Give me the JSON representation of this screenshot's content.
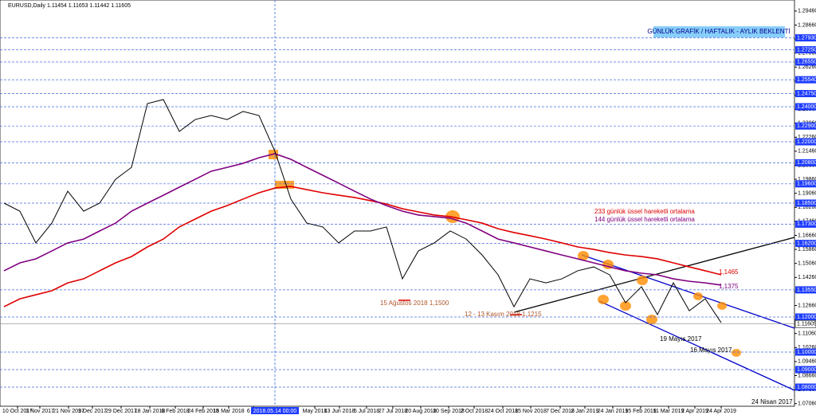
{
  "header": "EURUSD,Daily  1.11454 1.11653 1.11442 1.11605",
  "chart_data": {
    "type": "line",
    "series": [
      {
        "color": "#000000",
        "values": [
          1.185,
          1.1804,
          1.1623,
          1.1736,
          1.1918,
          1.1804,
          1.185,
          1.1986,
          1.2054,
          1.2418,
          1.2441,
          1.2259,
          1.2327,
          1.235,
          1.2327,
          1.2373,
          1.235,
          1.2145,
          1.1873,
          1.1736,
          1.1714,
          1.1623,
          1.1691,
          1.1691,
          1.1714,
          1.1418,
          1.1577,
          1.1623,
          1.1691,
          1.1645,
          1.1554,
          1.1441,
          1.1259,
          1.1418,
          1.1395,
          1.1418,
          1.1464,
          1.1486,
          1.1441,
          1.1282,
          1.1373,
          1.1214,
          1.1395,
          1.1236,
          1.1304,
          1.1168
        ]
      },
      {
        "color": "#800080",
        "values": [
          1.1464,
          1.1509,
          1.1532,
          1.1577,
          1.1623,
          1.1645,
          1.1691,
          1.1736,
          1.1804,
          1.185,
          1.1895,
          1.1941,
          1.1986,
          1.2032,
          1.2054,
          1.2077,
          1.2109,
          1.2132,
          1.21,
          1.2054,
          1.2009,
          1.1964,
          1.1918,
          1.1873,
          1.1836,
          1.1804,
          1.1782,
          1.1773,
          1.1764,
          1.1736,
          1.1691,
          1.1645,
          1.1623,
          1.16,
          1.1577,
          1.1554,
          1.1532,
          1.1509,
          1.1486,
          1.1464,
          1.145,
          1.1441,
          1.1418,
          1.1404,
          1.1395,
          1.1382
        ]
      },
      {
        "color": "#e00000",
        "values": [
          1.1259,
          1.1304,
          1.1327,
          1.135,
          1.1395,
          1.1418,
          1.1464,
          1.1509,
          1.1545,
          1.16,
          1.1645,
          1.1714,
          1.1759,
          1.1804,
          1.1836,
          1.1873,
          1.1909,
          1.1936,
          1.1945,
          1.1927,
          1.1909,
          1.1895,
          1.1882,
          1.1864,
          1.1845,
          1.1818,
          1.18,
          1.1782,
          1.1773,
          1.1755,
          1.1736,
          1.1704,
          1.1682,
          1.1664,
          1.1645,
          1.1623,
          1.16,
          1.1586,
          1.1568,
          1.1554,
          1.1545,
          1.1532,
          1.1509,
          1.1486,
          1.1464,
          1.1441
        ]
      }
    ],
    "xlim": [
      -0.25,
      49.6
    ],
    "xticks": [
      {
        "value": 0.85,
        "label": "10 Oct 2017"
      },
      {
        "value": 2.25,
        "label": "1 Nov 2017"
      },
      {
        "value": 4.05,
        "label": "21 Nov 2017"
      },
      {
        "value": 5.55,
        "label": "9 Dec 2017"
      },
      {
        "value": 7.35,
        "label": "29 Dec 2017"
      },
      {
        "value": 9.15,
        "label": "18 Jan 2018"
      },
      {
        "value": 10.75,
        "label": "6 Feb 2018"
      },
      {
        "value": 12.5,
        "label": "24 Feb 2018"
      },
      {
        "value": 14.1,
        "label": "15 Mar 2018"
      },
      {
        "value": 15.65,
        "label": "6 Apr"
      },
      {
        "value": 19.5,
        "label": "May 2018"
      },
      {
        "value": 21.05,
        "label": "13 Jun 2018"
      },
      {
        "value": 22.75,
        "label": "5 Jul 2018"
      },
      {
        "value": 24.4,
        "label": "27 Jul 2018"
      },
      {
        "value": 26.15,
        "label": "20 Aug 2018"
      },
      {
        "value": 27.9,
        "label": "10 Sep 2018"
      },
      {
        "value": 29.5,
        "label": "2 Oct 2018"
      },
      {
        "value": 31.3,
        "label": "24 Oct 2018"
      },
      {
        "value": 33.05,
        "label": "15 Nov 2018"
      },
      {
        "value": 34.9,
        "label": "7 Dec 2018"
      },
      {
        "value": 36.45,
        "label": "2 Jan 2019"
      },
      {
        "value": 38.2,
        "label": "24 Jan 2019"
      },
      {
        "value": 39.95,
        "label": "15 Feb 2019"
      },
      {
        "value": 41.7,
        "label": "11 Mar 2019"
      },
      {
        "value": 43.35,
        "label": "2 Apr 2019"
      },
      {
        "value": 45,
        "label": "24 Apr 2019"
      }
    ],
    "crosshair": {
      "value": 17,
      "label": "2018.05.14 00:00"
    },
    "ylim": [
      1.0691,
      1.3009
    ],
    "yticks": [
      {
        "value": 1.2946,
        "label": "1.29460"
      },
      {
        "value": 1.2866,
        "label": "1.28660"
      },
      {
        "value": 1.2786,
        "label": "1.27860"
      },
      {
        "value": 1.2706,
        "label": "1.27060"
      },
      {
        "value": 1.2626,
        "label": "1.26260"
      },
      {
        "value": 1.2546,
        "label": "1.25460"
      },
      {
        "value": 1.2466,
        "label": "1.24660"
      },
      {
        "value": 1.2386,
        "label": "1.23860"
      },
      {
        "value": 1.2306,
        "label": "1.23060"
      },
      {
        "value": 1.2226,
        "label": "1.22260"
      },
      {
        "value": 1.2146,
        "label": "1.21460"
      },
      {
        "value": 1.2066,
        "label": "1.20660"
      },
      {
        "value": 1.1986,
        "label": "1.19860"
      },
      {
        "value": 1.1906,
        "label": "1.19060"
      },
      {
        "value": 1.1826,
        "label": "1.18260"
      },
      {
        "value": 1.1746,
        "label": "1.17460"
      },
      {
        "value": 1.1666,
        "label": "1.16660"
      },
      {
        "value": 1.1586,
        "label": "1.15860"
      },
      {
        "value": 1.1506,
        "label": "1.15060"
      },
      {
        "value": 1.1426,
        "label": "1.14260"
      },
      {
        "value": 1.1346,
        "label": "1.13460"
      },
      {
        "value": 1.1266,
        "label": "1.12660"
      },
      {
        "value": 1.1186,
        "label": "1.11860"
      },
      {
        "value": 1.1106,
        "label": "1.11060"
      },
      {
        "value": 1.1026,
        "label": "1.10260"
      },
      {
        "value": 1.0946,
        "label": "1.09460"
      },
      {
        "value": 1.0866,
        "label": "1.08660"
      },
      {
        "value": 1.0786,
        "label": "1.07860"
      },
      {
        "value": 1.0706,
        "label": "1.07060"
      }
    ],
    "levels": [
      {
        "value": 1.2793,
        "label": "1.27930"
      },
      {
        "value": 1.2725,
        "label": "1.27250"
      },
      {
        "value": 1.2655,
        "label": "1.26550"
      },
      {
        "value": 1.2554,
        "label": "1.25540"
      },
      {
        "value": 1.2475,
        "label": "1.24750"
      },
      {
        "value": 1.24,
        "label": "1.24000"
      },
      {
        "value": 1.229,
        "label": "1.22900"
      },
      {
        "value": 1.22,
        "label": "1.22000"
      },
      {
        "value": 1.208,
        "label": "1.20800"
      },
      {
        "value": 1.196,
        "label": "1.19600"
      },
      {
        "value": 1.185,
        "label": "1.18500"
      },
      {
        "value": 1.173,
        "label": "1.17300"
      },
      {
        "value": 1.162,
        "label": "1.16200"
      },
      {
        "value": 1.1355,
        "label": "1.13550"
      },
      {
        "value": 1.12,
        "label": "1.12000"
      },
      {
        "value": 1.1,
        "label": "1.10000"
      },
      {
        "value": 1.09,
        "label": "1.09000"
      },
      {
        "value": 1.08,
        "label": "1.08000"
      }
    ],
    "last_price": {
      "value": 1.11605,
      "label": "1.11605"
    },
    "annotations": [
      "GÜNLÜK GRAFİK / HAFTALIK - AYLIK BEKLENTİ",
      "233 günlük üssel hareketli ortalama",
      "144 günlük üssel hareketli ortalama",
      "1,1465",
      "1,1375",
      "15 Ağustos 2018   1,1500",
      "12 - 13 Kasım 2018   1,1215",
      "19 Mayıs 2017",
      "16 Mayıs 2017",
      "24 Nisan 2017"
    ]
  }
}
